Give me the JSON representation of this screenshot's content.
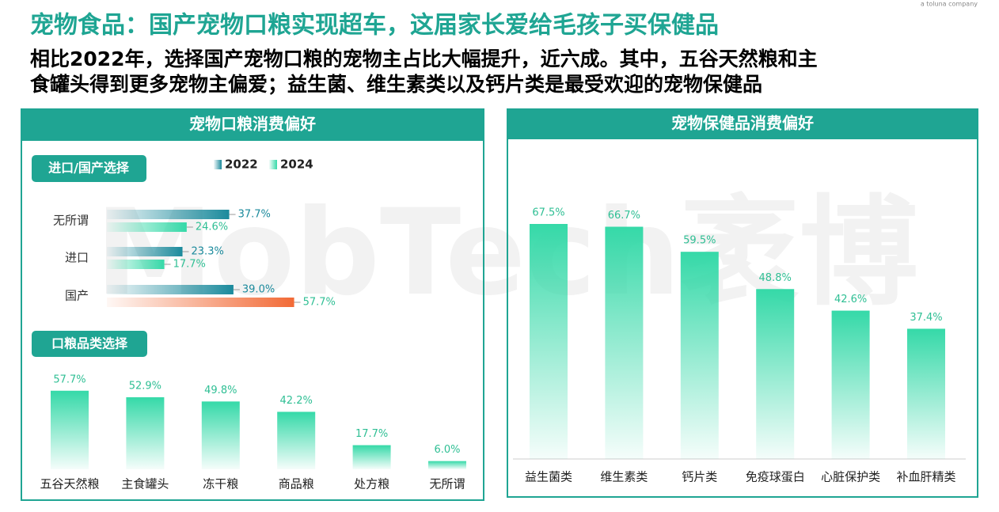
{
  "header": {
    "title": "宠物食品：国产宠物口粮实现超车，这届家长爱给毛孩子买保健品",
    "subtitle_lines": [
      "相比2022年，选择国产宠物口粮的宠物主占比大幅提升，近六成。其中，五谷天然粮和主",
      "食罐头得到更多宠物主偏爱；益生菌、维生素类以及钙片类是最受欢迎的宠物保健品"
    ],
    "brand": "a toluna company",
    "watermark": "MobTech袤博"
  },
  "panels": [
    {
      "title": "宠物口粮消费偏好"
    },
    {
      "title": "宠物保健品消费偏好"
    }
  ],
  "chart_data": [
    {
      "type": "hbar",
      "title": "进口/国产选择",
      "categories": [
        "无所谓",
        "进口",
        "国产"
      ],
      "series": [
        {
          "name": "2022",
          "color": "#1b8a9c",
          "values": [
            37.7,
            23.3,
            39.0
          ],
          "value_labels": [
            "37.7%",
            "23.3%",
            "39.0%"
          ]
        },
        {
          "name": "2024",
          "color": "#35d9a8",
          "colors": [
            "#35d9a8",
            "#35d9a8",
            "#f26a36"
          ],
          "values": [
            24.6,
            17.7,
            57.7
          ],
          "value_labels": [
            "24.6%",
            "17.7%",
            "57.7%"
          ]
        }
      ]
    },
    {
      "type": "bar",
      "title": "口粮品类选择",
      "color": "#35d9a8",
      "categories": [
        "五谷天然粮",
        "主食罐头",
        "冻干粮",
        "商品粮",
        "处方粮",
        "无所谓"
      ],
      "values": [
        57.7,
        52.9,
        49.8,
        42.2,
        17.7,
        6.0
      ],
      "value_labels": [
        "57.7%",
        "52.9%",
        "49.8%",
        "42.2%",
        "17.7%",
        "6.0%"
      ]
    },
    {
      "type": "bar",
      "color": "#35d9a8",
      "categories": [
        "益生菌类",
        "维生素类",
        "钙片类",
        "免疫球蛋白",
        "心脏保护类",
        "补血肝精类"
      ],
      "values": [
        67.5,
        66.7,
        59.5,
        48.8,
        42.6,
        37.4
      ],
      "value_labels": [
        "67.5%",
        "66.7%",
        "59.5%",
        "48.8%",
        "42.6%",
        "37.4%"
      ]
    }
  ]
}
